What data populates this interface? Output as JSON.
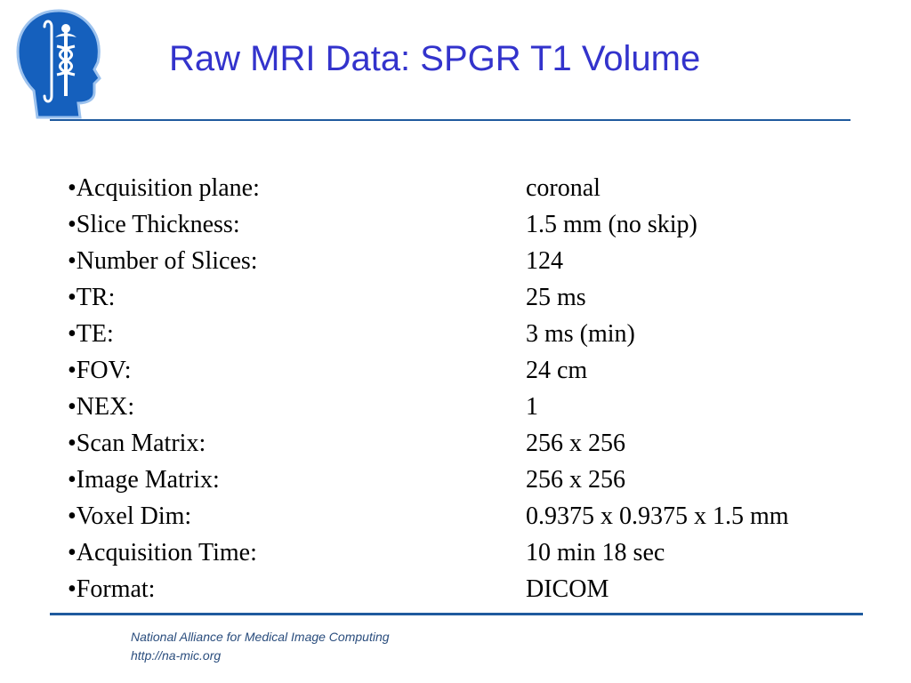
{
  "slide": {
    "title": "Raw MRI Data: SPGR T1 Volume",
    "logo_icon": "na-mic-head-caduceus-logo",
    "accent_color": "#3333cc",
    "rule_color": "#1f5a9e",
    "parameters": [
      {
        "label": "•Acquisition plane:",
        "value": "coronal"
      },
      {
        "label": "•Slice Thickness:",
        "value": "1.5 mm (no skip)"
      },
      {
        "label": "•Number of Slices:",
        "value": "124"
      },
      {
        "label": "•TR:",
        "value": "25 ms"
      },
      {
        "label": "•TE:",
        "value": "3 ms (min)"
      },
      {
        "label": "•FOV:",
        "value": "24 cm"
      },
      {
        "label": "•NEX:",
        "value": "1"
      },
      {
        "label": "•Scan Matrix:",
        "value": "256 x 256"
      },
      {
        "label": "•Image Matrix:",
        "value": "256 x 256"
      },
      {
        "label": "•Voxel Dim:",
        "value": "0.9375 x 0.9375 x 1.5 mm"
      },
      {
        "label": "•Acquisition Time:",
        "value": "10 min 18 sec"
      },
      {
        "label": "•Format:",
        "value": "DICOM"
      }
    ],
    "footer": {
      "org_name": "National Alliance for Medical Image Computing",
      "url": "http://na-mic.org"
    }
  }
}
